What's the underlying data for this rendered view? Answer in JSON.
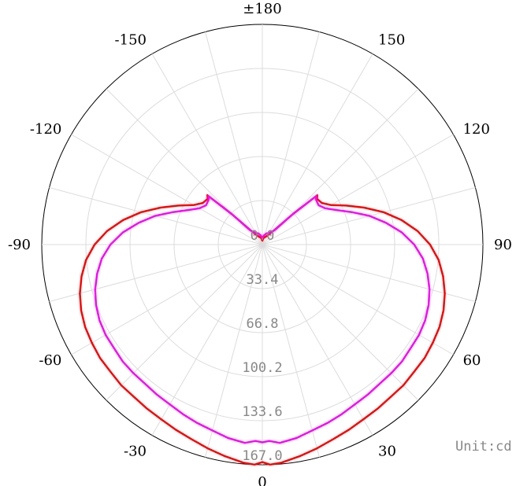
{
  "chart_data": {
    "type": "polar_line",
    "unit_label": "Unit:cd",
    "angle_labels": [
      "±180",
      "150",
      "120",
      "90",
      "60",
      "30",
      "0",
      "-30",
      "-60",
      "-90",
      "-120",
      "-150"
    ],
    "angle_label_angles": [
      180,
      150,
      120,
      90,
      60,
      30,
      0,
      -30,
      -60,
      -90,
      -120,
      -150
    ],
    "radial_ticks": [
      0.0,
      33.4,
      66.8,
      100.2,
      133.6,
      167.0
    ],
    "radial_tick_labels": [
      "0.0",
      "33.4",
      "66.8",
      "100.2",
      "133.6",
      "167.0"
    ],
    "rmax": 167.0,
    "angular_grid_step_deg": 15,
    "grid": true,
    "series": [
      {
        "color": "#ff0000",
        "theta": [
          0,
          2,
          5,
          10,
          15,
          20,
          25,
          30,
          35,
          40,
          45,
          50,
          55,
          60,
          65,
          70,
          75,
          80,
          85,
          90,
          95,
          100,
          105,
          110,
          115,
          120,
          125,
          130,
          132,
          135,
          140,
          150,
          160,
          170,
          180
        ],
        "r": [
          165,
          167,
          166,
          163,
          160,
          157,
          155,
          153,
          152,
          151,
          151,
          150,
          150,
          149,
          148,
          146,
          143,
          139,
          134,
          127,
          118,
          107,
          95,
          82,
          70,
          60,
          55,
          54,
          56,
          33,
          15,
          8,
          6,
          5,
          3
        ]
      },
      {
        "color": "#ff00ff",
        "theta": [
          0,
          2,
          5,
          10,
          15,
          20,
          25,
          30,
          35,
          40,
          45,
          50,
          55,
          60,
          65,
          70,
          75,
          80,
          85,
          90,
          95,
          100,
          105,
          110,
          115,
          120,
          125,
          130,
          132,
          135,
          140,
          150,
          160,
          170,
          180
        ],
        "r": [
          150,
          149,
          151,
          149,
          146,
          144,
          142,
          140,
          139,
          138,
          138,
          138,
          137,
          137,
          136,
          134,
          131,
          127,
          122,
          115,
          106,
          95,
          84,
          72,
          62,
          55,
          52,
          53,
          55,
          32,
          14,
          10,
          9,
          7,
          5
        ]
      }
    ]
  }
}
